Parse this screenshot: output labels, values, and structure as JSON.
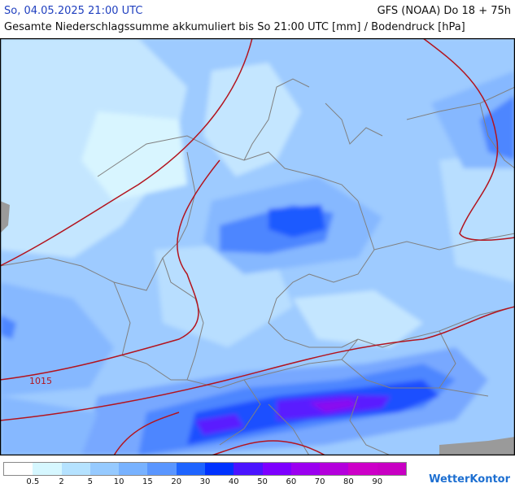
{
  "header": {
    "datetime": "So, 04.05.2025 21:00 UTC",
    "model": "GFS (NOAA) Do 18 + 75h",
    "title": "Gesamte Niederschlagssumme akkumuliert bis So 21:00 UTC [mm] / Bodendruck [hPa]"
  },
  "map": {
    "isobar_label": "1015",
    "isobar_color": "#b3141e",
    "border_color": "#808080",
    "background_color": "#c8dcff"
  },
  "legend": {
    "labels": [
      "0.5",
      "2",
      "5",
      "10",
      "15",
      "20",
      "30",
      "40",
      "50",
      "60",
      "70",
      "80",
      "90"
    ],
    "colors": [
      "#ffffff",
      "#d6f7ff",
      "#b5e2ff",
      "#96caff",
      "#78b2ff",
      "#5a96ff",
      "#1e64ff",
      "#0032ff",
      "#4b14ff",
      "#7d00ff",
      "#9b00f0",
      "#b400dc",
      "#cd00c8",
      "#c800c3"
    ]
  },
  "brand": "WetterKontor"
}
